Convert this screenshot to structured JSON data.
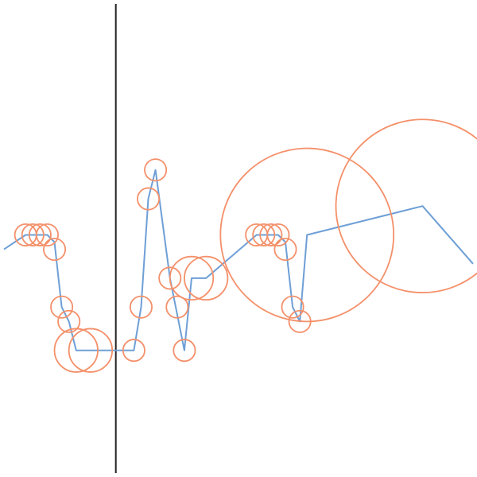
{
  "chart_data": {
    "type": "line",
    "title": "",
    "xlabel": "",
    "ylabel": "",
    "grid": false,
    "legend": "none",
    "xlim": [
      0,
      65
    ],
    "ylim": [
      0,
      65
    ],
    "vline_x": 15.5,
    "colors": {
      "line": "#6e9fd6",
      "bubble": "#f4906a",
      "axis": "#222222"
    },
    "series": [
      {
        "name": "line",
        "x": [
          0,
          3,
          5,
          6,
          7,
          8,
          9,
          10,
          18,
          19,
          20,
          21,
          23,
          25,
          26,
          28,
          35,
          36,
          37,
          38,
          39,
          40,
          41,
          42,
          58,
          65
        ],
        "y": [
          31,
          33,
          33,
          33,
          32,
          23,
          21,
          17,
          17,
          23,
          38,
          42,
          27,
          17,
          27,
          27,
          33,
          33,
          33,
          33,
          32,
          23,
          21,
          33,
          37,
          29
        ]
      }
    ],
    "bubbles": [
      {
        "x": 3,
        "y": 33,
        "r": 1.5
      },
      {
        "x": 4,
        "y": 33,
        "r": 1.5
      },
      {
        "x": 5,
        "y": 33,
        "r": 1.5
      },
      {
        "x": 6,
        "y": 33,
        "r": 1.5
      },
      {
        "x": 7,
        "y": 31,
        "r": 1.5
      },
      {
        "x": 8,
        "y": 23,
        "r": 1.5
      },
      {
        "x": 9,
        "y": 21,
        "r": 1.5
      },
      {
        "x": 10,
        "y": 17,
        "r": 3
      },
      {
        "x": 12,
        "y": 17,
        "r": 3
      },
      {
        "x": 18,
        "y": 17,
        "r": 1.5
      },
      {
        "x": 19,
        "y": 23,
        "r": 1.5
      },
      {
        "x": 20,
        "y": 38,
        "r": 1.5
      },
      {
        "x": 21,
        "y": 42,
        "r": 1.5
      },
      {
        "x": 23,
        "y": 27,
        "r": 1.5
      },
      {
        "x": 24,
        "y": 23,
        "r": 1.5
      },
      {
        "x": 25,
        "y": 17,
        "r": 1.5
      },
      {
        "x": 26,
        "y": 27,
        "r": 3
      },
      {
        "x": 28,
        "y": 27,
        "r": 3
      },
      {
        "x": 35,
        "y": 33,
        "r": 1.5
      },
      {
        "x": 36,
        "y": 33,
        "r": 1.5
      },
      {
        "x": 37,
        "y": 33,
        "r": 1.5
      },
      {
        "x": 38,
        "y": 33,
        "r": 1.5
      },
      {
        "x": 39,
        "y": 31,
        "r": 1.5
      },
      {
        "x": 40,
        "y": 23,
        "r": 1.5
      },
      {
        "x": 41,
        "y": 21,
        "r": 1.5
      },
      {
        "x": 42,
        "y": 33,
        "r": 12
      },
      {
        "x": 58,
        "y": 37,
        "r": 12
      }
    ]
  }
}
